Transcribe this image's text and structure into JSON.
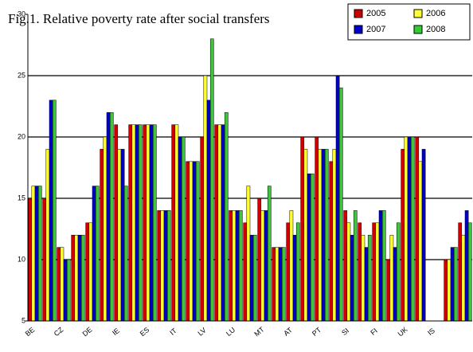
{
  "chart_data": {
    "type": "bar",
    "title": "Fig.1. Relative poverty rate after social transfers",
    "categories": [
      "BE",
      null,
      "CZ",
      null,
      "DE",
      null,
      "IE",
      null,
      "ES",
      null,
      "IT",
      null,
      "LV",
      null,
      "LU",
      null,
      "MT",
      null,
      "AT",
      null,
      "PT",
      null,
      "SI",
      null,
      "FI",
      null,
      "UK",
      null,
      "IS",
      null,
      null
    ],
    "series": [
      {
        "name": "2005",
        "color": "#cc0000",
        "values": [
          15,
          15,
          11,
          12,
          13,
          19,
          21,
          21,
          21,
          14,
          21,
          18,
          20,
          21,
          14,
          13,
          15,
          11,
          13,
          20,
          20,
          18,
          14,
          13,
          13,
          10,
          19,
          20,
          null,
          10,
          13
        ]
      },
      {
        "name": "2006",
        "color": "#ffff33",
        "values": [
          16,
          19,
          11,
          12,
          13,
          20,
          19,
          21,
          21,
          14,
          21,
          18,
          25,
          21,
          14,
          16,
          14,
          11,
          14,
          19,
          19,
          19,
          13,
          12,
          13,
          12,
          20,
          18,
          null,
          10,
          12
        ]
      },
      {
        "name": "2007",
        "color": "#0000cc",
        "values": [
          16,
          23,
          10,
          12,
          16,
          22,
          19,
          21,
          21,
          14,
          20,
          18,
          23,
          21,
          14,
          12,
          14,
          11,
          12,
          17,
          19,
          25,
          12,
          11,
          14,
          11,
          20,
          19,
          null,
          11,
          14
        ]
      },
      {
        "name": "2008",
        "color": "#33cc33",
        "values": [
          16,
          23,
          10,
          12,
          16,
          22,
          16,
          21,
          21,
          14,
          20,
          18,
          28,
          22,
          14,
          12,
          16,
          11,
          13,
          17,
          19,
          24,
          14,
          12,
          14,
          13,
          20,
          null,
          null,
          11,
          13
        ]
      }
    ],
    "ylim": [
      5,
      30
    ],
    "yticks": [
      5,
      10,
      15,
      20,
      25,
      30
    ],
    "grid": true,
    "legend": "top-right"
  }
}
